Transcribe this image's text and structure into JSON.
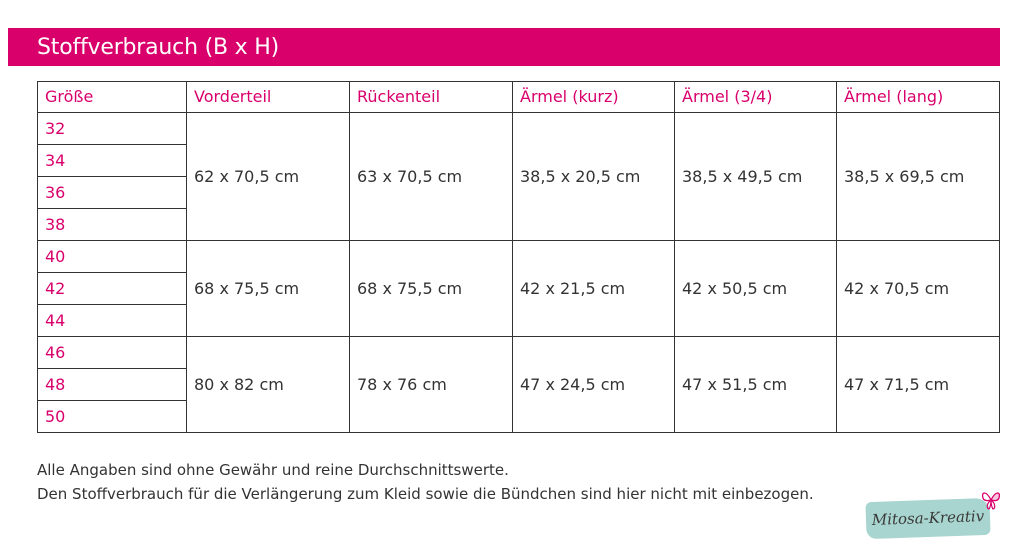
{
  "title": "Stoffverbrauch (B x H)",
  "colors": {
    "accent": "#d9006c",
    "text": "#333333",
    "logo_bg": "#a8d5cf"
  },
  "table": {
    "headers": [
      "Größe",
      "Vorderteil",
      "Rückenteil",
      "Ärmel (kurz)",
      "Ärmel (3/4)",
      "Ärmel (lang)"
    ],
    "groups": [
      {
        "sizes": [
          "32",
          "34",
          "36",
          "38"
        ],
        "values": [
          "62 x 70,5 cm",
          "63 x 70,5 cm",
          "38,5 x 20,5 cm",
          "38,5 x 49,5 cm",
          "38,5 x 69,5 cm"
        ]
      },
      {
        "sizes": [
          "40",
          "42",
          "44"
        ],
        "values": [
          "68 x 75,5 cm",
          "68 x 75,5 cm",
          "42 x 21,5 cm",
          "42 x 50,5 cm",
          "42 x 70,5 cm"
        ]
      },
      {
        "sizes": [
          "46",
          "48",
          "50"
        ],
        "values": [
          "80 x 82 cm",
          "78 x 76 cm",
          "47 x 24,5 cm",
          "47 x 51,5 cm",
          "47 x 71,5 cm"
        ]
      }
    ]
  },
  "notes": [
    "Alle Angaben sind ohne Gewähr und reine Durchschnittswerte.",
    "Den Stoffverbrauch für die Verlängerung zum Kleid sowie die Bündchen sind hier nicht mit einbezogen."
  ],
  "logo": {
    "text": "Mitosa-Kreativ",
    "icon": "butterfly-icon"
  }
}
